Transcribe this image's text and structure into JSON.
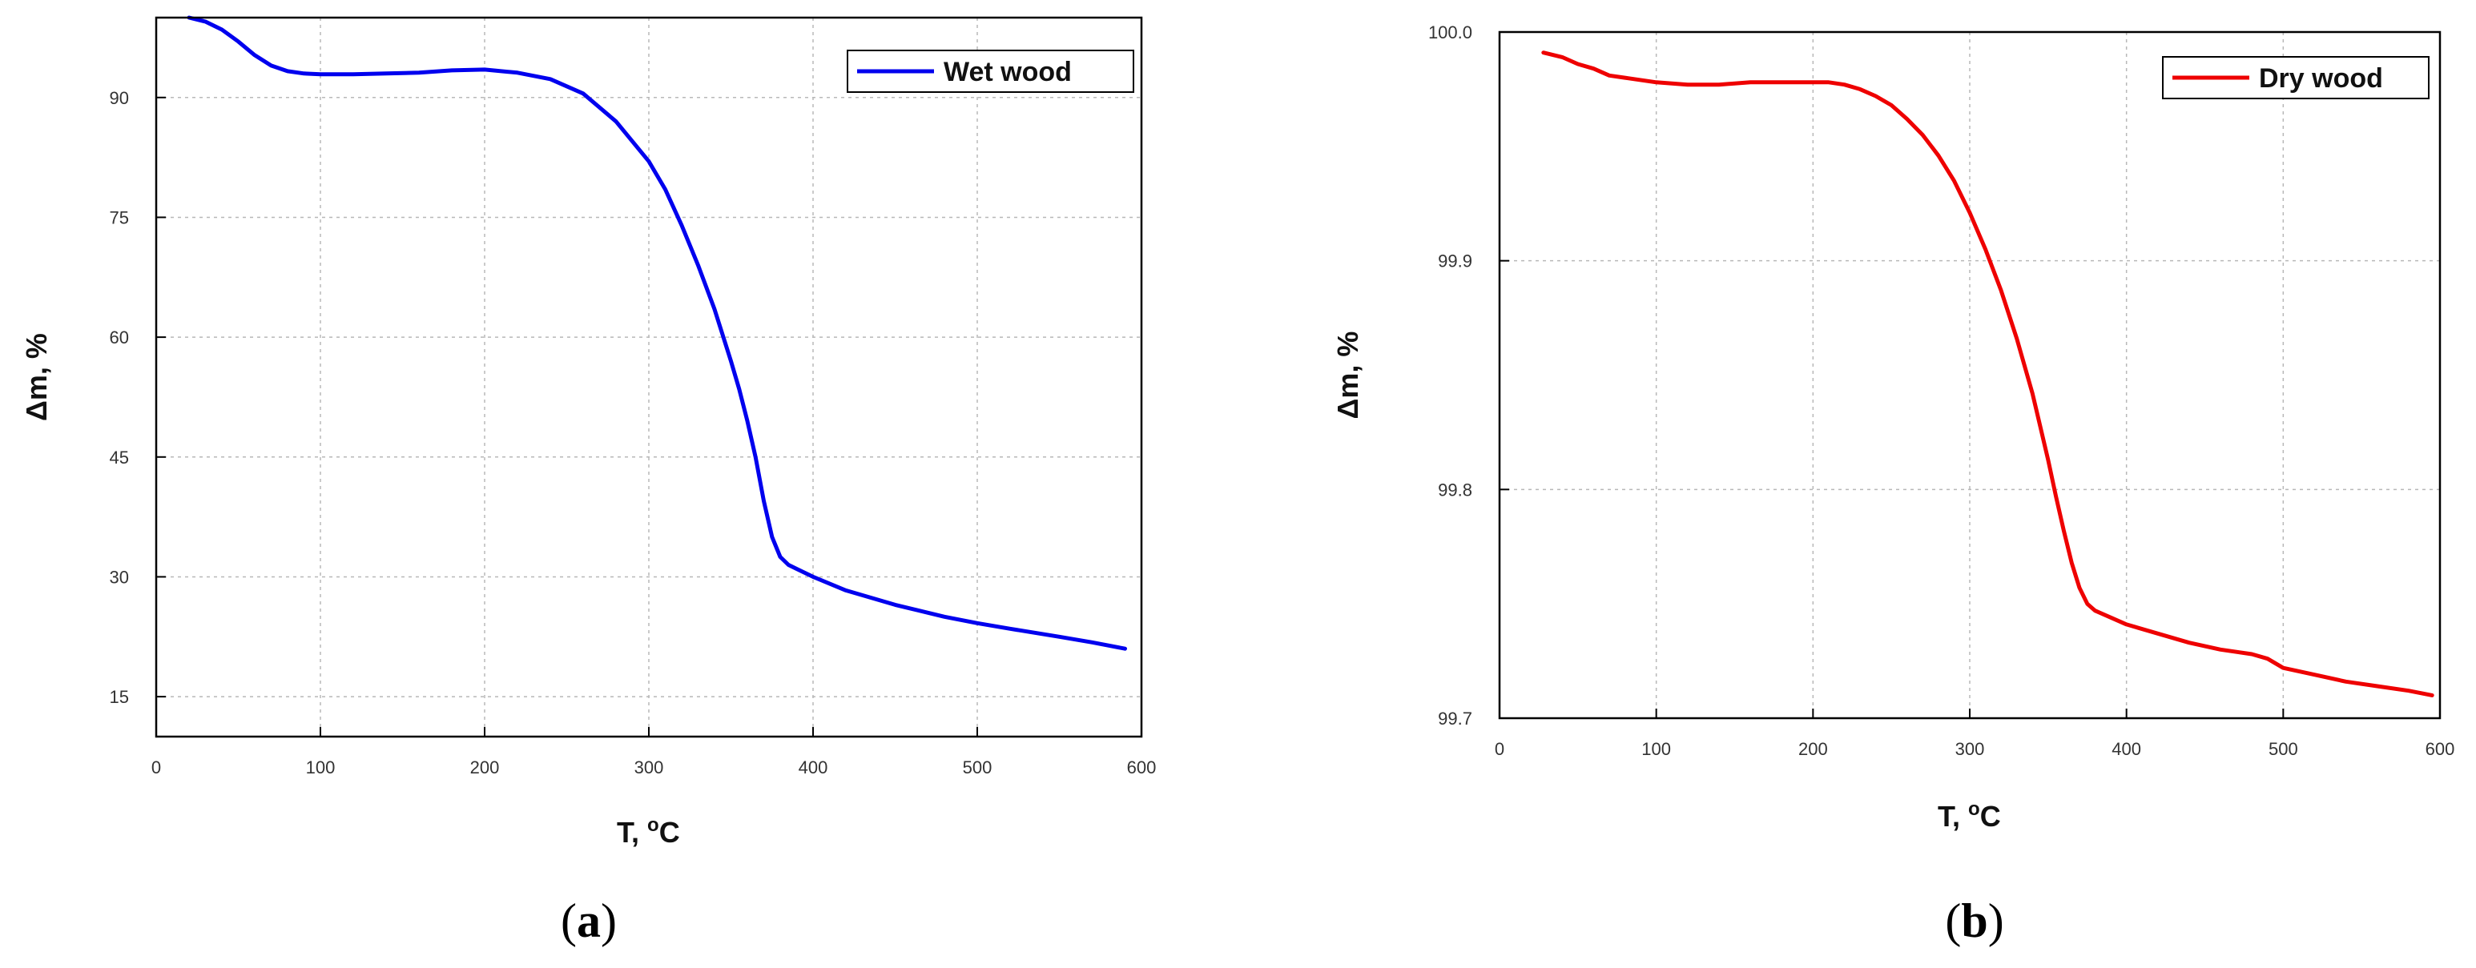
{
  "chart_data": [
    {
      "type": "line",
      "panel_label": "a",
      "xlabel": "T, ",
      "xlabel_sup": "o",
      "xlabel_unit": "C",
      "ylabel": "Δm, %",
      "xlim": [
        0,
        600
      ],
      "ylim": [
        10,
        100
      ],
      "xticks": [
        0,
        100,
        200,
        300,
        400,
        500,
        600
      ],
      "yticks": [
        15,
        30,
        45,
        60,
        75,
        90
      ],
      "tick_labels_x": [
        "0",
        "100",
        "200",
        "300",
        "400",
        "500",
        "600"
      ],
      "tick_labels_y": [
        "15",
        "30",
        "45",
        "60",
        "75",
        "90"
      ],
      "grid": true,
      "legend_position": "top-right",
      "series": [
        {
          "name": "Wet wood",
          "color": "#0000ee",
          "x": [
            20,
            30,
            40,
            50,
            60,
            70,
            80,
            90,
            100,
            120,
            140,
            160,
            180,
            200,
            220,
            240,
            260,
            280,
            300,
            310,
            320,
            330,
            340,
            350,
            355,
            360,
            365,
            370,
            375,
            380,
            385,
            390,
            400,
            420,
            450,
            480,
            500,
            520,
            550,
            570,
            590
          ],
          "y": [
            100,
            99.5,
            98.5,
            97,
            95.3,
            94,
            93.3,
            93,
            92.9,
            92.9,
            93,
            93.1,
            93.4,
            93.5,
            93.1,
            92.3,
            90.5,
            87,
            82,
            78.5,
            74,
            69,
            63.5,
            57,
            53.5,
            49.5,
            45,
            39.5,
            35,
            32.5,
            31.5,
            31,
            30,
            28.3,
            26.5,
            25,
            24.2,
            23.5,
            22.5,
            21.8,
            21
          ]
        }
      ]
    },
    {
      "type": "line",
      "panel_label": "b",
      "xlabel": "T, ",
      "xlabel_sup": "o",
      "xlabel_unit": "C",
      "ylabel": "Δm, %",
      "xlim": [
        0,
        600
      ],
      "ylim": [
        99.7,
        100.0
      ],
      "xticks": [
        0,
        100,
        200,
        300,
        400,
        500,
        600
      ],
      "yticks": [
        99.7,
        99.8,
        99.9,
        100.0
      ],
      "tick_labels_x": [
        "0",
        "100",
        "200",
        "300",
        "400",
        "500",
        "600"
      ],
      "tick_labels_y": [
        "99.7",
        "99.8",
        "99.9",
        "100.0"
      ],
      "grid": true,
      "legend_position": "top-right",
      "series": [
        {
          "name": "Dry wood",
          "color": "#ee0000",
          "x": [
            28,
            40,
            50,
            60,
            70,
            80,
            100,
            120,
            140,
            160,
            180,
            200,
            210,
            220,
            230,
            240,
            250,
            260,
            270,
            280,
            290,
            300,
            310,
            320,
            330,
            340,
            350,
            355,
            360,
            365,
            370,
            375,
            380,
            390,
            400,
            420,
            440,
            460,
            480,
            490,
            500,
            520,
            540,
            560,
            580,
            595
          ],
          "y": [
            99.991,
            99.989,
            99.986,
            99.984,
            99.981,
            99.98,
            99.978,
            99.977,
            99.977,
            99.978,
            99.978,
            99.978,
            99.978,
            99.977,
            99.975,
            99.972,
            99.968,
            99.962,
            99.955,
            99.946,
            99.935,
            99.921,
            99.905,
            99.887,
            99.866,
            99.842,
            99.813,
            99.797,
            99.782,
            99.768,
            99.757,
            99.75,
            99.747,
            99.744,
            99.741,
            99.737,
            99.733,
            99.73,
            99.728,
            99.726,
            99.722,
            99.719,
            99.716,
            99.714,
            99.712,
            99.71
          ]
        }
      ]
    }
  ]
}
